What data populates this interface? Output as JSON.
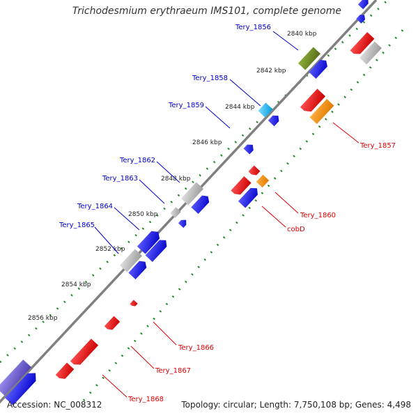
{
  "header": {
    "title": "Trichodesmium erythraeum IMS101, complete genome"
  },
  "footer": {
    "accession": "Accession: NC_008312",
    "summary": "Topology: circular; Length: 7,750,108 bp; Genes: 4,498"
  },
  "colors": {
    "backbone": "#808080",
    "tick": "#228b22",
    "forward_label": "#0000cc",
    "reverse_label": "#dd0000",
    "feature_blue": "#0000ee",
    "feature_red": "#ee0000",
    "feature_gray": "#b4b4b4",
    "feature_green": "#6b8e23",
    "feature_orange": "#ff8c00",
    "feature_cyan": "#00bfff",
    "feature_violet": "#6a5acd"
  },
  "scale_labels": [
    "2840 kbp",
    "2842 kbp",
    "2844 kbp",
    "2846 kbp",
    "2848 kbp",
    "2850 kbp",
    "2852 kbp",
    "2854 kbp",
    "2856 kbp"
  ],
  "forward_genes": [
    "Tery_1856",
    "Tery_1858",
    "Tery_1859",
    "Tery_1862",
    "Tery_1863",
    "Tery_1864",
    "Tery_1865"
  ],
  "reverse_genes": [
    "Tery_1857",
    "Tery_1860",
    "cobD",
    "Tery_1866",
    "Tery_1867",
    "Tery_1868"
  ]
}
